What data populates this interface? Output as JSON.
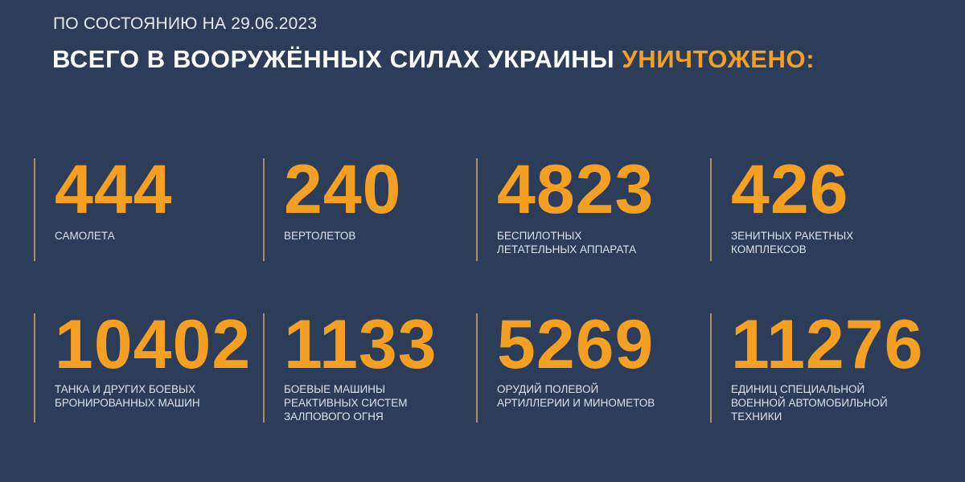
{
  "header": {
    "subtitle": "ПО СОСТОЯНИЮ НА 29.06.2023",
    "title_main": "ВСЕГО В ВООРУЖЁННЫХ СИЛАХ УКРАИНЫ ",
    "title_accent": "УНИЧТОЖЕНО:"
  },
  "colors": {
    "background": "#2b3d58",
    "accent": "#f5a023",
    "text": "#ffffff"
  },
  "stats": [
    {
      "value": "444",
      "label": "САМОЛЕТА"
    },
    {
      "value": "240",
      "label": "ВЕРТОЛЕТОВ"
    },
    {
      "value": "4823",
      "label": "БЕСПИЛОТНЫХ\nЛЕТАТЕЛЬНЫХ АППАРАТА"
    },
    {
      "value": "426",
      "label": "ЗЕНИТНЫХ РАКЕТНЫХ\nКОМПЛЕКСОВ"
    },
    {
      "value": "10402",
      "label": "ТАНКА И ДРУГИХ БОЕВЫХ\nБРОНИРОВАННЫХ МАШИН"
    },
    {
      "value": "1133",
      "label": "БОЕВЫЕ МАШИНЫ\nРЕАКТИВНЫХ СИСТЕМ\nЗАЛПОВОГО ОГНЯ"
    },
    {
      "value": "5269",
      "label": "ОРУДИЙ ПОЛЕВОЙ\nАРТИЛЛЕРИИ И МИНОМЕТОВ"
    },
    {
      "value": "11276",
      "label": "ЕДИНИЦ СПЕЦИАЛЬНОЙ\nВОЕННОЙ АВТОМОБИЛЬНОЙ\nТЕХНИКИ"
    }
  ]
}
